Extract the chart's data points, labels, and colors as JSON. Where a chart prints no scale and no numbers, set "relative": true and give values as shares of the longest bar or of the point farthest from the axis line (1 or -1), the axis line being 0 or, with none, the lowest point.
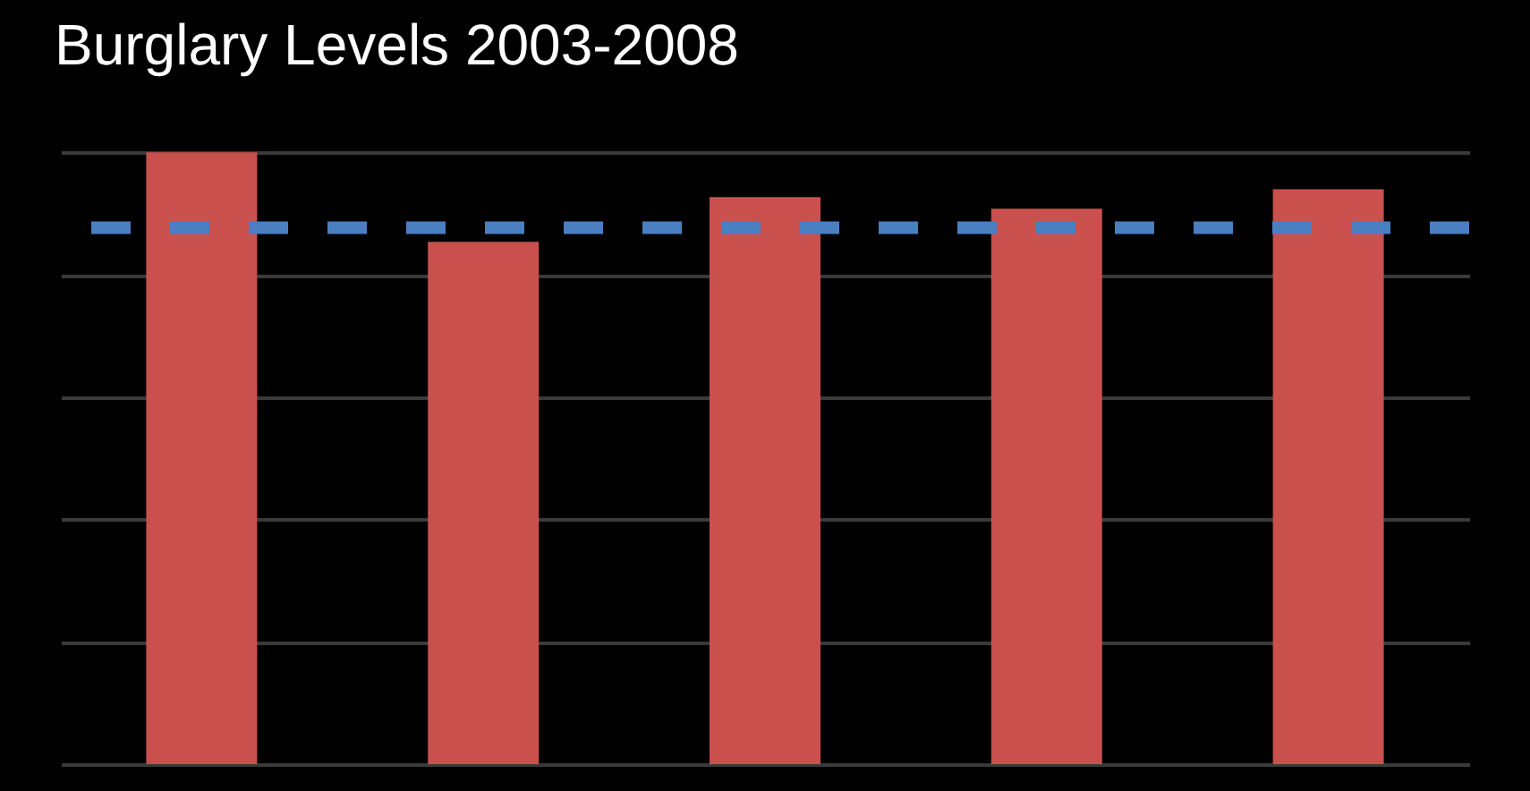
{
  "chart_data": {
    "type": "bar",
    "title": "Burglary Levels 2003-2008",
    "relative": true,
    "categories": [
      null,
      null,
      null,
      null,
      null
    ],
    "values": [
      1,
      0.854,
      0.927,
      0.908,
      0.94
    ],
    "color": "#c9504c",
    "grid": "y",
    "tick_labels": false,
    "ref_lines": [
      {
        "axis": "y",
        "value": 0.877,
        "color": "#4a7fc1",
        "line_style": "dashed"
      }
    ]
  }
}
